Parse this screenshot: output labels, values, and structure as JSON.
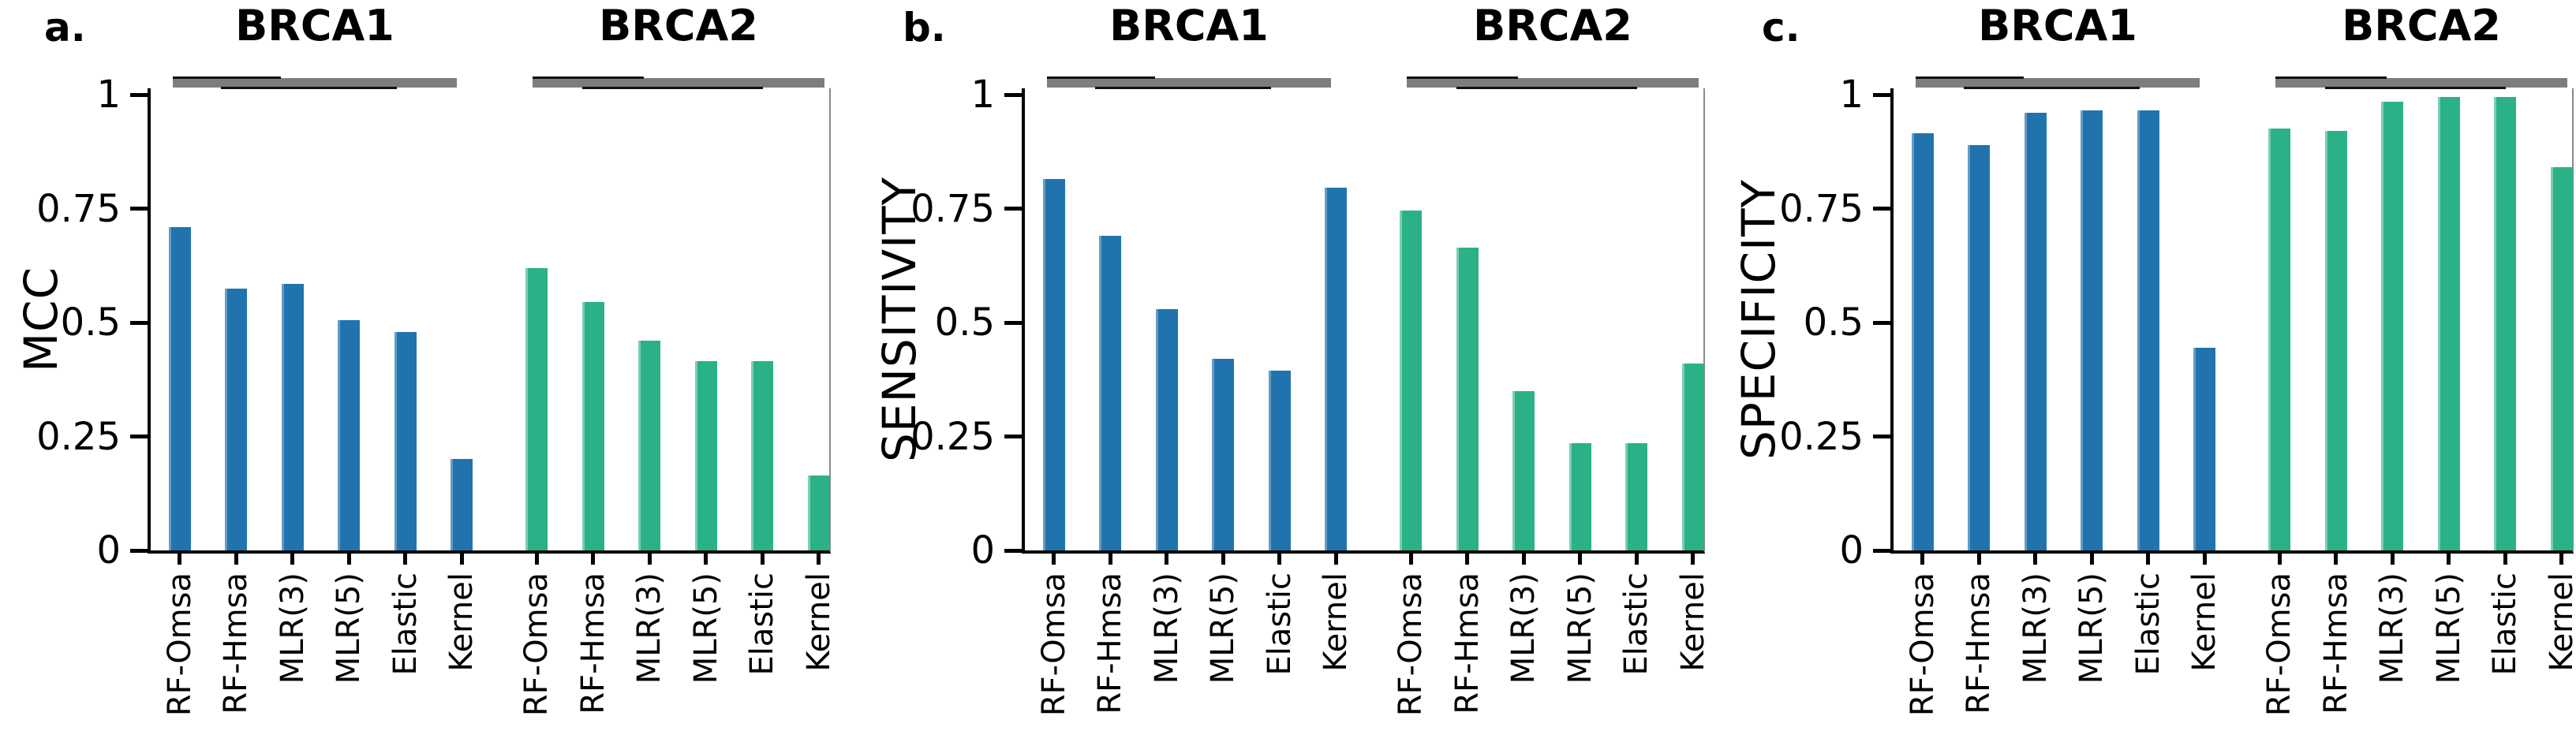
{
  "figure": {
    "background": "#ffffff",
    "groups": [
      "BRCA1",
      "BRCA2"
    ],
    "methods": [
      "RF-Omsa",
      "RF-Hmsa",
      "MLR(3)",
      "MLR(5)",
      "Elastic",
      "Kernel"
    ]
  },
  "colors": {
    "brca1_bar": "#2173ae",
    "brca2_bar": "#2ab188",
    "header_underline": "#7d7d7d",
    "axis": "#000000"
  },
  "chart_data": [
    {
      "type": "bar",
      "panel_label": "a.",
      "ylabel": "MCC",
      "groups": [
        "BRCA1",
        "BRCA2"
      ],
      "categories": [
        "RF-Omsa",
        "RF-Hmsa",
        "MLR(3)",
        "MLR(5)",
        "Elastic",
        "Kernel"
      ],
      "series": [
        {
          "name": "BRCA1",
          "color": "#2173ae",
          "values": [
            0.71,
            0.575,
            0.585,
            0.505,
            0.48,
            0.2
          ]
        },
        {
          "name": "BRCA2",
          "color": "#2ab188",
          "values": [
            0.62,
            0.545,
            0.46,
            0.415,
            0.415,
            0.165
          ]
        }
      ],
      "ylim": [
        0,
        1
      ],
      "yticks": [
        0,
        0.25,
        0.5,
        0.75,
        1
      ],
      "ytick_labels": [
        "0",
        "0.25",
        "0.5",
        "0.75",
        "1"
      ],
      "grid": false,
      "legend": "none"
    },
    {
      "type": "bar",
      "panel_label": "b.",
      "ylabel": "SENSITIVITY",
      "groups": [
        "BRCA1",
        "BRCA2"
      ],
      "categories": [
        "RF-Omsa",
        "RF-Hmsa",
        "MLR(3)",
        "MLR(5)",
        "Elastic",
        "Kernel"
      ],
      "series": [
        {
          "name": "BRCA1",
          "color": "#2173ae",
          "values": [
            0.815,
            0.69,
            0.53,
            0.42,
            0.395,
            0.795
          ]
        },
        {
          "name": "BRCA2",
          "color": "#2ab188",
          "values": [
            0.745,
            0.665,
            0.35,
            0.235,
            0.235,
            0.41
          ]
        }
      ],
      "ylim": [
        0,
        1
      ],
      "yticks": [
        0,
        0.25,
        0.5,
        0.75,
        1
      ],
      "ytick_labels": [
        "0",
        "0.25",
        "0.5",
        "0.75",
        "1"
      ],
      "grid": false,
      "legend": "none"
    },
    {
      "type": "bar",
      "panel_label": "c.",
      "ylabel": "SPECIFICITY",
      "groups": [
        "BRCA1",
        "BRCA2"
      ],
      "categories": [
        "RF-Omsa",
        "RF-Hmsa",
        "MLR(3)",
        "MLR(5)",
        "Elastic",
        "Kernel"
      ],
      "series": [
        {
          "name": "BRCA1",
          "color": "#2173ae",
          "values": [
            0.915,
            0.89,
            0.96,
            0.965,
            0.965,
            0.445
          ]
        },
        {
          "name": "BRCA2",
          "color": "#2ab188",
          "values": [
            0.925,
            0.92,
            0.985,
            0.995,
            0.995,
            0.84
          ]
        }
      ],
      "ylim": [
        0,
        1
      ],
      "yticks": [
        0,
        0.25,
        0.5,
        0.75,
        1
      ],
      "ytick_labels": [
        "0",
        "0.25",
        "0.5",
        "0.75",
        "1"
      ],
      "grid": false,
      "legend": "none"
    }
  ]
}
